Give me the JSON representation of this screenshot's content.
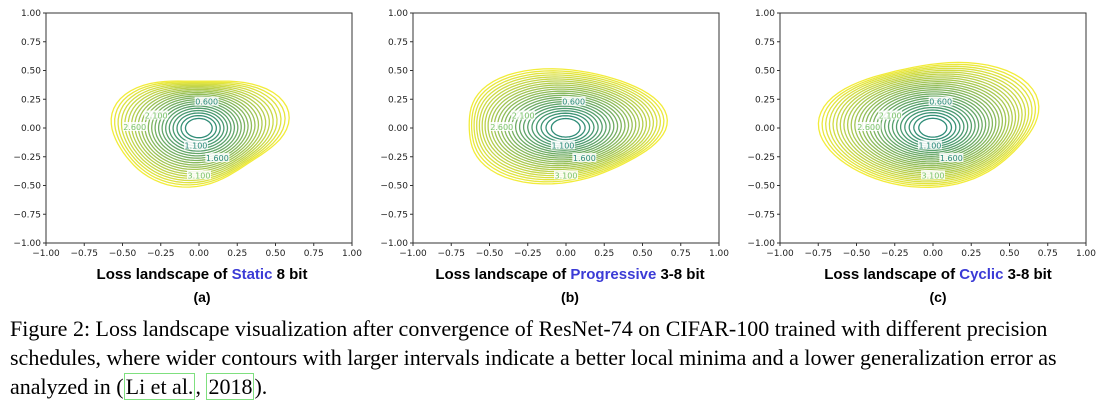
{
  "chart_data": [
    {
      "type": "contour",
      "title_prefix": "Loss landscape of ",
      "title_highlight": "Static",
      "title_suffix": " 8 bit",
      "label": "(a)",
      "xlim": [
        -1.0,
        1.0
      ],
      "ylim": [
        -1.0,
        1.0
      ],
      "xticks": [
        "−1.00",
        "−0.75",
        "−0.50",
        "−0.25",
        "0.00",
        "0.25",
        "0.50",
        "0.75",
        "1.00"
      ],
      "yticks": [
        "1.00",
        "0.75",
        "0.50",
        "0.25",
        "0.00",
        "−0.25",
        "−0.50",
        "−0.75",
        "−1.00"
      ],
      "center": [
        0.0,
        0.0
      ],
      "outer_extent_x": [
        -0.55,
        0.52
      ],
      "outer_extent_y": [
        -0.5,
        0.48
      ],
      "contour_labels": [
        "0.600",
        "1.100",
        "1.600",
        "2.100",
        "2.600",
        "3.100"
      ]
    },
    {
      "type": "contour",
      "title_prefix": "Loss landscape of ",
      "title_highlight": "Progressive",
      "title_suffix": " 3-8 bit",
      "label": "(b)",
      "xlim": [
        -1.0,
        1.0
      ],
      "ylim": [
        -1.0,
        1.0
      ],
      "xticks": [
        "−1.00",
        "−0.75",
        "−0.50",
        "−0.25",
        "0.00",
        "0.25",
        "0.50",
        "0.75",
        "1.00"
      ],
      "yticks": [
        "1.00",
        "0.75",
        "0.50",
        "0.25",
        "0.00",
        "−0.25",
        "−0.50",
        "−0.75",
        "−1.00"
      ],
      "center": [
        0.0,
        0.0
      ],
      "outer_extent_x": [
        -0.7,
        0.65
      ],
      "outer_extent_y": [
        -0.45,
        0.5
      ],
      "contour_labels": [
        "0.600",
        "1.100",
        "1.600",
        "2.100",
        "2.600",
        "3.100"
      ]
    },
    {
      "type": "contour",
      "title_prefix": "Loss landscape of ",
      "title_highlight": "Cyclic",
      "title_suffix": " 3-8 bit",
      "label": "(c)",
      "xlim": [
        -1.0,
        1.0
      ],
      "ylim": [
        -1.0,
        1.0
      ],
      "xticks": [
        "−1.00",
        "−0.75",
        "−0.50",
        "−0.25",
        "0.00",
        "0.25",
        "0.50",
        "0.75",
        "1.00"
      ],
      "yticks": [
        "1.00",
        "0.75",
        "0.50",
        "0.25",
        "0.00",
        "−0.25",
        "−0.50",
        "−0.75",
        "−1.00"
      ],
      "center": [
        0.0,
        0.0
      ],
      "outer_extent_x": [
        -0.72,
        0.68
      ],
      "outer_extent_y": [
        -0.5,
        0.58
      ],
      "contour_labels": [
        "0.600",
        "1.100",
        "1.600",
        "2.100",
        "2.600",
        "3.100"
      ]
    }
  ],
  "caption": {
    "text": "Figure 2: Loss landscape visualization after convergence of ResNet-74 on CIFAR-100 trained with different precision schedules, where wider contours with larger intervals indicate a better local minima and a lower generalization error as analyzed in ",
    "cite_authors": "Li et al.",
    "cite_sep": ", ",
    "cite_year": "2018",
    "end": ")."
  },
  "colors": {
    "inner": "#2a8a7a",
    "outer": "#f2ec3a",
    "highlight": "#3b3bd6"
  }
}
